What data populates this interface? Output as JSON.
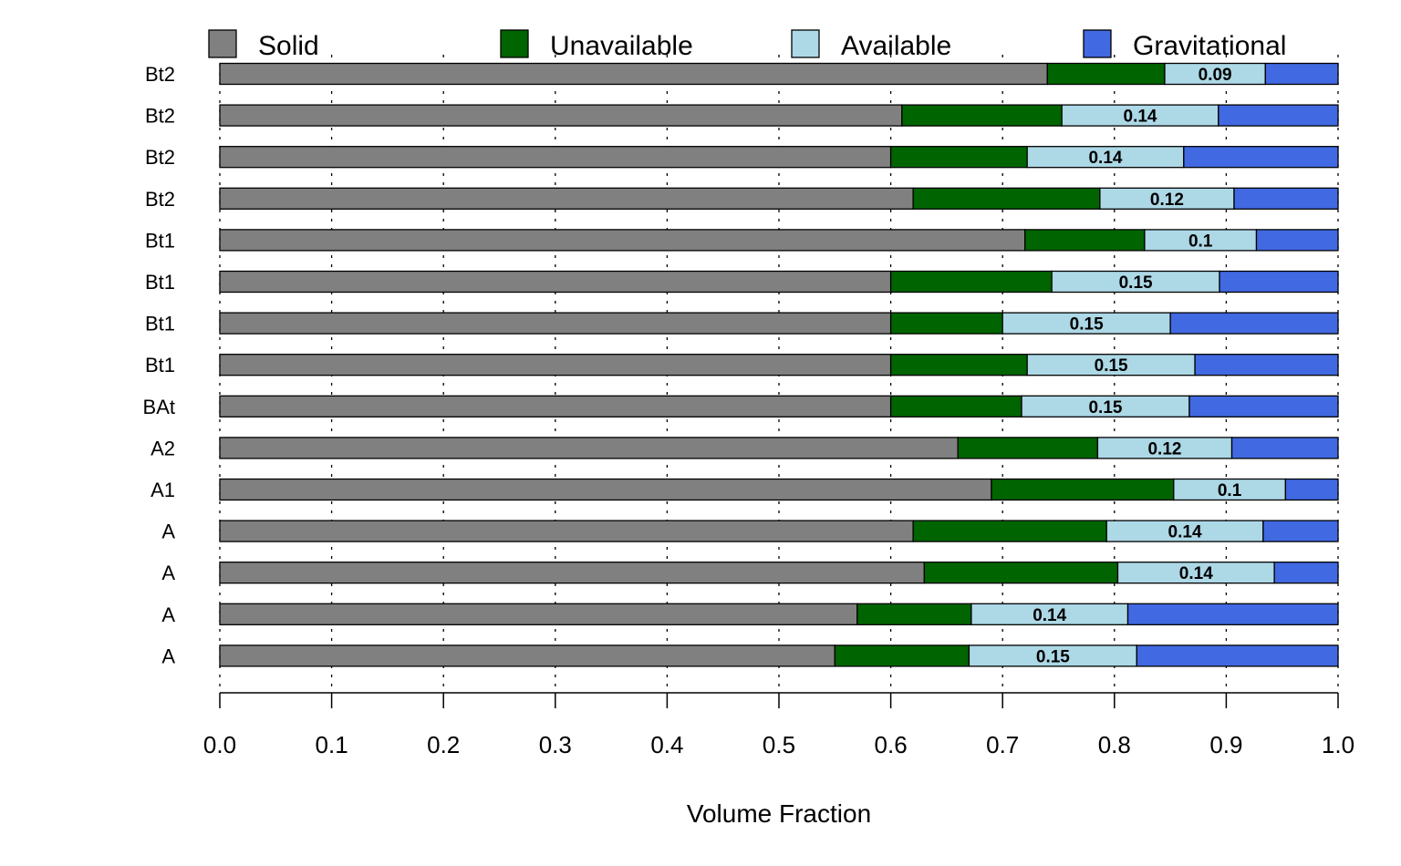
{
  "chart_data": {
    "type": "bar",
    "orientation": "horizontal",
    "stacked": true,
    "title": "",
    "xlabel": "Volume Fraction",
    "ylabel": "",
    "xlim": [
      0,
      1
    ],
    "xticks": [
      "0.0",
      "0.1",
      "0.2",
      "0.3",
      "0.4",
      "0.5",
      "0.6",
      "0.7",
      "0.8",
      "0.9",
      "1.0"
    ],
    "grid": "vertical dotted",
    "legend_position": "top",
    "categories": [
      "Bt2",
      "Bt2",
      "Bt2",
      "Bt2",
      "Bt1",
      "Bt1",
      "Bt1",
      "Bt1",
      "BAt",
      "A2",
      "A1",
      "A",
      "A",
      "A",
      "A"
    ],
    "series": [
      {
        "name": "Solid",
        "color": "#808080",
        "values": [
          0.74,
          0.61,
          0.6,
          0.62,
          0.72,
          0.6,
          0.6,
          0.6,
          0.6,
          0.66,
          0.69,
          0.62,
          0.63,
          0.57,
          0.55
        ]
      },
      {
        "name": "Unavailable",
        "color": "#006400",
        "values": [
          0.105,
          0.143,
          0.122,
          0.167,
          0.107,
          0.144,
          0.1,
          0.122,
          0.117,
          0.125,
          0.163,
          0.173,
          0.173,
          0.102,
          0.12
        ]
      },
      {
        "name": "Available",
        "color": "#ADD8E6",
        "values": [
          0.09,
          0.14,
          0.14,
          0.12,
          0.1,
          0.15,
          0.15,
          0.15,
          0.15,
          0.12,
          0.1,
          0.14,
          0.14,
          0.14,
          0.15
        ]
      },
      {
        "name": "Gravitational",
        "color": "#4169E1",
        "values": [
          0.065,
          0.107,
          0.138,
          0.093,
          0.073,
          0.106,
          0.15,
          0.128,
          0.133,
          0.095,
          0.047,
          0.067,
          0.057,
          0.188,
          0.18
        ]
      }
    ],
    "data_labels": [
      "0.09",
      "0.14",
      "0.14",
      "0.12",
      "0.1",
      "0.15",
      "0.15",
      "0.15",
      "0.15",
      "0.12",
      "0.1",
      "0.14",
      "0.14",
      "0.14",
      "0.15"
    ]
  }
}
